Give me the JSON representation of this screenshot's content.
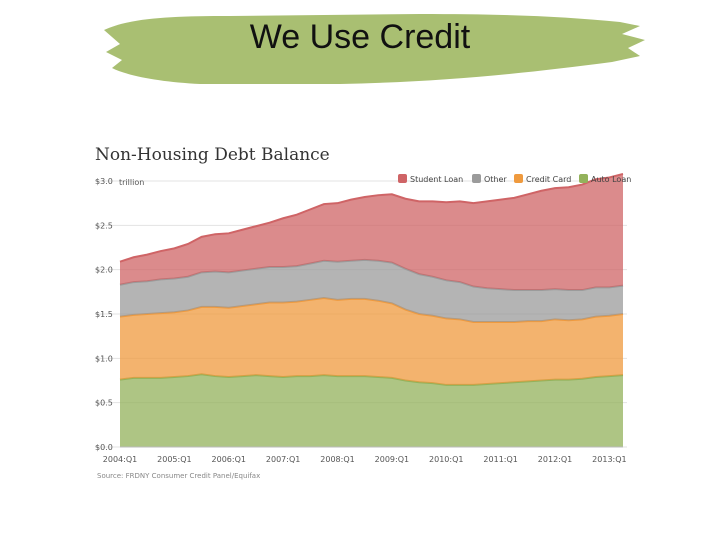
{
  "slide": {
    "title": "We Use Credit",
    "brush_color": "#a9bf72"
  },
  "chart_data": {
    "type": "area",
    "stacked": true,
    "title": "Non-Housing Debt Balance",
    "source": "Source: FRDNY Consumer Credit Panel/Equifax",
    "y_tick_labels": [
      "$3.0",
      "$2.5",
      "$2.0",
      "$1.5",
      "$1.0",
      "$0.5",
      "$0.0"
    ],
    "y_unit": "trillion",
    "ylim": [
      0,
      3.0
    ],
    "x_tick_labels": [
      "2004:Q1",
      "2005:Q1",
      "2006:Q1",
      "2007:Q1",
      "2008:Q1",
      "2009:Q1",
      "2010:Q1",
      "2011:Q1",
      "2012:Q1",
      "2013:Q1"
    ],
    "grid": true,
    "legend_position": "top-right",
    "x": [
      2004.0,
      2004.25,
      2004.5,
      2004.75,
      2005.0,
      2005.25,
      2005.5,
      2005.75,
      2006.0,
      2006.25,
      2006.5,
      2006.75,
      2007.0,
      2007.25,
      2007.5,
      2007.75,
      2008.0,
      2008.25,
      2008.5,
      2008.75,
      2009.0,
      2009.25,
      2009.5,
      2009.75,
      2010.0,
      2010.25,
      2010.5,
      2010.75,
      2011.0,
      2011.25,
      2011.5,
      2011.75,
      2012.0,
      2012.25,
      2012.5,
      2012.75,
      2013.0,
      2013.25
    ],
    "series": [
      {
        "name": "Auto Loan",
        "color": "#93b25b",
        "values": [
          0.76,
          0.78,
          0.78,
          0.78,
          0.79,
          0.8,
          0.82,
          0.8,
          0.79,
          0.8,
          0.81,
          0.8,
          0.79,
          0.8,
          0.8,
          0.81,
          0.8,
          0.8,
          0.8,
          0.79,
          0.78,
          0.75,
          0.73,
          0.72,
          0.7,
          0.7,
          0.7,
          0.71,
          0.72,
          0.73,
          0.74,
          0.75,
          0.76,
          0.76,
          0.77,
          0.79,
          0.8,
          0.81
        ]
      },
      {
        "name": "Credit Card",
        "color": "#ef9a3e",
        "values": [
          0.71,
          0.71,
          0.72,
          0.73,
          0.73,
          0.74,
          0.76,
          0.78,
          0.78,
          0.79,
          0.8,
          0.83,
          0.84,
          0.84,
          0.86,
          0.87,
          0.86,
          0.87,
          0.87,
          0.86,
          0.84,
          0.8,
          0.77,
          0.76,
          0.75,
          0.74,
          0.71,
          0.7,
          0.69,
          0.68,
          0.68,
          0.67,
          0.68,
          0.67,
          0.67,
          0.68,
          0.68,
          0.69
        ]
      },
      {
        "name": "Other",
        "color": "#9b9b9b",
        "values": [
          0.36,
          0.37,
          0.37,
          0.38,
          0.38,
          0.38,
          0.39,
          0.4,
          0.4,
          0.4,
          0.4,
          0.4,
          0.4,
          0.4,
          0.41,
          0.42,
          0.43,
          0.43,
          0.44,
          0.45,
          0.46,
          0.46,
          0.45,
          0.44,
          0.43,
          0.42,
          0.4,
          0.38,
          0.37,
          0.36,
          0.35,
          0.35,
          0.34,
          0.34,
          0.33,
          0.33,
          0.32,
          0.32
        ]
      },
      {
        "name": "Student Loan",
        "color": "#cf6466",
        "values": [
          0.26,
          0.28,
          0.3,
          0.32,
          0.34,
          0.37,
          0.4,
          0.42,
          0.44,
          0.46,
          0.48,
          0.5,
          0.55,
          0.58,
          0.61,
          0.64,
          0.66,
          0.69,
          0.71,
          0.74,
          0.77,
          0.79,
          0.82,
          0.85,
          0.88,
          0.91,
          0.94,
          0.98,
          1.01,
          1.04,
          1.08,
          1.12,
          1.14,
          1.16,
          1.19,
          1.22,
          1.24,
          1.26
        ]
      }
    ]
  }
}
